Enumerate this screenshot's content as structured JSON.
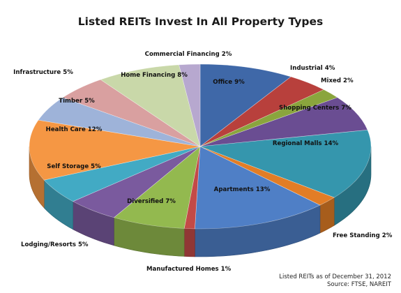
{
  "chart_data": {
    "type": "pie",
    "title": "Listed REITs Invest In All Property Types",
    "style": "3d-pie",
    "slices": [
      {
        "label": "Office 9%",
        "name": "Office",
        "value": 9,
        "color": "#3f68a8"
      },
      {
        "label": "Industrial 4%",
        "name": "Industrial",
        "value": 4,
        "color": "#b8403c"
      },
      {
        "label": "Mixed 2%",
        "name": "Mixed",
        "value": 2,
        "color": "#8aa53d"
      },
      {
        "label": "Shopping Centers 7%",
        "name": "Shopping Centers",
        "value": 7,
        "color": "#6a4d92"
      },
      {
        "label": "Regional Malls 14%",
        "name": "Regional Malls",
        "value": 14,
        "color": "#3596ad"
      },
      {
        "label": "Free Standing 2%",
        "name": "Free Standing",
        "value": 2,
        "color": "#e27d26"
      },
      {
        "label": "Apartments 13%",
        "name": "Apartments",
        "value": 13,
        "color": "#4f7fc6"
      },
      {
        "label": "Manufactured Homes 1%",
        "name": "Manufactured Homes",
        "value": 1,
        "color": "#c34a47"
      },
      {
        "label": "Diversified 7%",
        "name": "Diversified",
        "value": 7,
        "color": "#93b94f"
      },
      {
        "label": "Lodging/Resorts 5%",
        "name": "Lodging/Resorts",
        "value": 5,
        "color": "#7a5a9e"
      },
      {
        "label": "Self Storage 5%",
        "name": "Self Storage",
        "value": 5,
        "color": "#42aac4"
      },
      {
        "label": "Health Care 12%",
        "name": "Health Care",
        "value": 12,
        "color": "#f59744"
      },
      {
        "label": "Timber 5%",
        "name": "Timber",
        "value": 5,
        "color": "#9eb3d9"
      },
      {
        "label": "Infrastructure 5%",
        "name": "Infrastructure",
        "value": 5,
        "color": "#d9a0a0"
      },
      {
        "label": "Home Financing 8%",
        "name": "Home Financing",
        "value": 8,
        "color": "#c9d8a9"
      },
      {
        "label": "Commercial Financing 2%",
        "name": "Commercial Financing",
        "value": 2,
        "color": "#b7a8cf"
      }
    ]
  },
  "notes": {
    "date": "Listed REITs as of December  31, 2012",
    "source": "Source:  FTSE, NAREIT"
  }
}
